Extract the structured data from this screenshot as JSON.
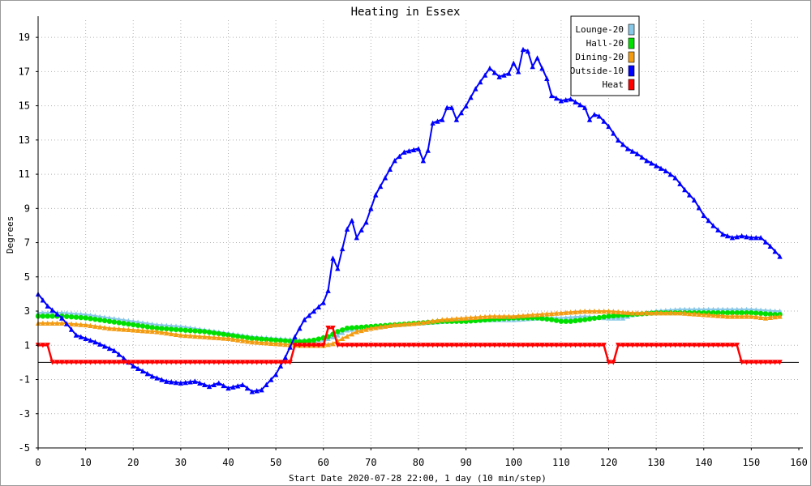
{
  "chart_data": {
    "type": "line",
    "title": "Heating in Essex",
    "xlabel": "Start Date 2020-07-28 22:00, 1 day (10 min/step)",
    "ylabel": "Degrees",
    "xlim": [
      0,
      160
    ],
    "ylim": [
      -5,
      20
    ],
    "xticks": [
      0,
      10,
      20,
      30,
      40,
      50,
      60,
      70,
      80,
      90,
      100,
      110,
      120,
      130,
      140,
      150,
      160
    ],
    "yticks": [
      -5,
      -3,
      -1,
      1,
      3,
      5,
      7,
      9,
      11,
      13,
      15,
      17,
      19
    ],
    "grid": true,
    "zero_line": true,
    "legend_position": "top-right",
    "series": [
      {
        "name": "Lounge-20",
        "color": "#87c7e7",
        "marker": "triangle-up",
        "points": [
          [
            0,
            2.9
          ],
          [
            5,
            2.9
          ],
          [
            10,
            2.8
          ],
          [
            15,
            2.6
          ],
          [
            20,
            2.4
          ],
          [
            25,
            2.2
          ],
          [
            30,
            2.1
          ],
          [
            35,
            1.9
          ],
          [
            40,
            1.7
          ],
          [
            45,
            1.5
          ],
          [
            50,
            1.4
          ],
          [
            55,
            1.3
          ],
          [
            58,
            1.3
          ],
          [
            61,
            1.4
          ],
          [
            63,
            1.6
          ],
          [
            65,
            1.9
          ],
          [
            70,
            2.1
          ],
          [
            75,
            2.2
          ],
          [
            80,
            2.3
          ],
          [
            85,
            2.4
          ],
          [
            90,
            2.5
          ],
          [
            95,
            2.5
          ],
          [
            100,
            2.5
          ],
          [
            105,
            2.6
          ],
          [
            110,
            2.6
          ],
          [
            115,
            2.7
          ],
          [
            120,
            2.6
          ],
          [
            123,
            2.6
          ],
          [
            125,
            2.8
          ],
          [
            130,
            3.0
          ],
          [
            135,
            3.1
          ],
          [
            140,
            3.1
          ],
          [
            145,
            3.1
          ],
          [
            150,
            3.1
          ],
          [
            155,
            3.0
          ],
          [
            156,
            3.0
          ]
        ]
      },
      {
        "name": "Hall-20",
        "color": "#00e000",
        "marker": "circle",
        "points": [
          [
            0,
            2.7
          ],
          [
            5,
            2.7
          ],
          [
            10,
            2.6
          ],
          [
            15,
            2.4
          ],
          [
            20,
            2.2
          ],
          [
            25,
            2.0
          ],
          [
            30,
            1.9
          ],
          [
            35,
            1.8
          ],
          [
            40,
            1.6
          ],
          [
            45,
            1.4
          ],
          [
            50,
            1.3
          ],
          [
            55,
            1.2
          ],
          [
            58,
            1.3
          ],
          [
            61,
            1.5
          ],
          [
            63,
            1.8
          ],
          [
            65,
            2.0
          ],
          [
            70,
            2.1
          ],
          [
            75,
            2.2
          ],
          [
            80,
            2.3
          ],
          [
            85,
            2.4
          ],
          [
            90,
            2.4
          ],
          [
            95,
            2.5
          ],
          [
            100,
            2.6
          ],
          [
            105,
            2.6
          ],
          [
            108,
            2.5
          ],
          [
            110,
            2.4
          ],
          [
            112,
            2.4
          ],
          [
            115,
            2.5
          ],
          [
            120,
            2.7
          ],
          [
            125,
            2.8
          ],
          [
            130,
            2.9
          ],
          [
            135,
            2.9
          ],
          [
            140,
            2.9
          ],
          [
            145,
            2.9
          ],
          [
            150,
            2.9
          ],
          [
            155,
            2.8
          ],
          [
            156,
            2.8
          ]
        ]
      },
      {
        "name": "Dining-20",
        "color": "#f39c12",
        "marker": "triangle-up",
        "points": [
          [
            0,
            2.3
          ],
          [
            5,
            2.3
          ],
          [
            10,
            2.2
          ],
          [
            15,
            2.0
          ],
          [
            20,
            1.9
          ],
          [
            25,
            1.8
          ],
          [
            30,
            1.6
          ],
          [
            35,
            1.5
          ],
          [
            40,
            1.4
          ],
          [
            45,
            1.2
          ],
          [
            50,
            1.1
          ],
          [
            55,
            1.0
          ],
          [
            60,
            1.0
          ],
          [
            62,
            1.1
          ],
          [
            64,
            1.4
          ],
          [
            67,
            1.8
          ],
          [
            70,
            2.0
          ],
          [
            75,
            2.2
          ],
          [
            80,
            2.3
          ],
          [
            85,
            2.5
          ],
          [
            90,
            2.6
          ],
          [
            95,
            2.7
          ],
          [
            100,
            2.7
          ],
          [
            105,
            2.8
          ],
          [
            110,
            2.9
          ],
          [
            115,
            3.0
          ],
          [
            120,
            3.0
          ],
          [
            125,
            2.9
          ],
          [
            130,
            2.9
          ],
          [
            135,
            2.9
          ],
          [
            140,
            2.8
          ],
          [
            145,
            2.7
          ],
          [
            150,
            2.7
          ],
          [
            153,
            2.6
          ],
          [
            156,
            2.7
          ]
        ]
      },
      {
        "name": "Outside-10",
        "color": "#0000ff",
        "marker": "triangle-up",
        "points": [
          [
            0,
            4.0
          ],
          [
            2,
            3.3
          ],
          [
            5,
            2.6
          ],
          [
            8,
            1.6
          ],
          [
            12,
            1.2
          ],
          [
            16,
            0.7
          ],
          [
            20,
            -0.2
          ],
          [
            24,
            -0.8
          ],
          [
            27,
            -1.1
          ],
          [
            30,
            -1.2
          ],
          [
            33,
            -1.1
          ],
          [
            36,
            -1.4
          ],
          [
            38,
            -1.2
          ],
          [
            40,
            -1.5
          ],
          [
            43,
            -1.3
          ],
          [
            45,
            -1.7
          ],
          [
            47,
            -1.6
          ],
          [
            50,
            -0.7
          ],
          [
            52,
            0.3
          ],
          [
            54,
            1.5
          ],
          [
            56,
            2.5
          ],
          [
            58,
            3.0
          ],
          [
            60,
            3.5
          ],
          [
            61,
            4.2
          ],
          [
            62,
            6.1
          ],
          [
            63,
            5.5
          ],
          [
            65,
            7.8
          ],
          [
            66,
            8.3
          ],
          [
            67,
            7.3
          ],
          [
            69,
            8.2
          ],
          [
            71,
            9.8
          ],
          [
            73,
            10.8
          ],
          [
            75,
            11.8
          ],
          [
            77,
            12.3
          ],
          [
            80,
            12.5
          ],
          [
            81,
            11.8
          ],
          [
            82,
            12.4
          ],
          [
            83,
            14.0
          ],
          [
            85,
            14.2
          ],
          [
            86,
            14.9
          ],
          [
            87,
            14.9
          ],
          [
            88,
            14.2
          ],
          [
            90,
            15.0
          ],
          [
            92,
            16.0
          ],
          [
            94,
            16.8
          ],
          [
            95,
            17.2
          ],
          [
            97,
            16.7
          ],
          [
            99,
            16.9
          ],
          [
            100,
            17.5
          ],
          [
            101,
            17.0
          ],
          [
            102,
            18.3
          ],
          [
            103,
            18.2
          ],
          [
            104,
            17.3
          ],
          [
            105,
            17.8
          ],
          [
            107,
            16.6
          ],
          [
            108,
            15.6
          ],
          [
            110,
            15.3
          ],
          [
            112,
            15.4
          ],
          [
            115,
            14.9
          ],
          [
            116,
            14.2
          ],
          [
            117,
            14.5
          ],
          [
            118,
            14.4
          ],
          [
            120,
            13.8
          ],
          [
            122,
            13.0
          ],
          [
            124,
            12.5
          ],
          [
            126,
            12.2
          ],
          [
            128,
            11.8
          ],
          [
            130,
            11.5
          ],
          [
            132,
            11.2
          ],
          [
            134,
            10.8
          ],
          [
            136,
            10.1
          ],
          [
            138,
            9.5
          ],
          [
            140,
            8.6
          ],
          [
            142,
            8.0
          ],
          [
            144,
            7.5
          ],
          [
            146,
            7.3
          ],
          [
            148,
            7.4
          ],
          [
            150,
            7.3
          ],
          [
            152,
            7.3
          ],
          [
            154,
            6.8
          ],
          [
            156,
            6.2
          ]
        ]
      },
      {
        "name": "Heat",
        "color": "#ff0000",
        "marker": "triangle-down",
        "points": [
          [
            0,
            1
          ],
          [
            2,
            1
          ],
          [
            3,
            0
          ],
          [
            53,
            0
          ],
          [
            54,
            1
          ],
          [
            60,
            1
          ],
          [
            61,
            2
          ],
          [
            62,
            2
          ],
          [
            63,
            1
          ],
          [
            119,
            1
          ],
          [
            120,
            0
          ],
          [
            121,
            0
          ],
          [
            122,
            1
          ],
          [
            147,
            1
          ],
          [
            148,
            0
          ],
          [
            156,
            0
          ]
        ]
      }
    ]
  }
}
